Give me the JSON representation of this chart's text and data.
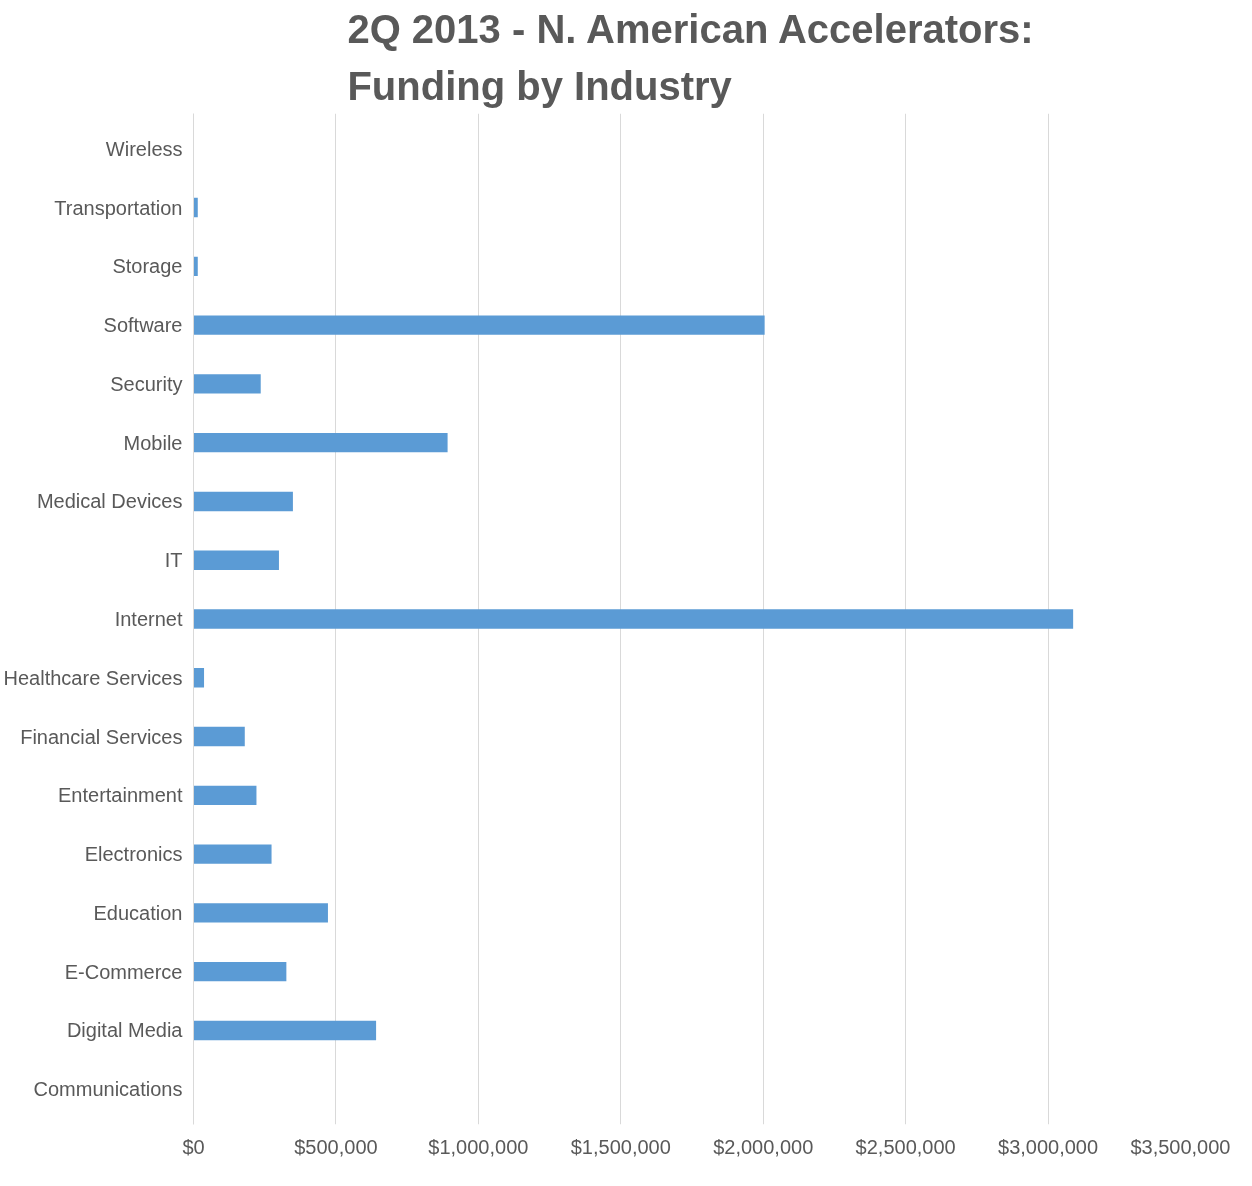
{
  "chart_data": {
    "type": "bar",
    "orientation": "horizontal",
    "title": "2Q 2013 - N. American Accelerators: Funding by Industry",
    "categories": [
      "Wireless",
      "Transportation",
      "Storage",
      "Software",
      "Security",
      "Mobile",
      "Medical Devices",
      "IT",
      "Internet",
      "Healthcare Services",
      "Financial Services",
      "Entertainment",
      "Electronics",
      "Education",
      "E-Commerce",
      "Digital Media",
      "Communications"
    ],
    "values": [
      0,
      15000,
      15000,
      2005000,
      236000,
      892000,
      349000,
      300000,
      3088000,
      37000,
      180000,
      221000,
      274000,
      472000,
      326000,
      641000,
      0
    ],
    "color": "#5b9bd5",
    "xlim": [
      0,
      3500000
    ],
    "xticks": [
      {
        "value": 0,
        "label": "$0"
      },
      {
        "value": 500000,
        "label": "$500,000"
      },
      {
        "value": 1000000,
        "label": "$1,000,000"
      },
      {
        "value": 1500000,
        "label": "$1,500,000"
      },
      {
        "value": 2000000,
        "label": "$2,000,000"
      },
      {
        "value": 2500000,
        "label": "$2,500,000"
      },
      {
        "value": 3000000,
        "label": "$3,000,000"
      },
      {
        "value": 3500000,
        "label": "$3,500,000"
      }
    ],
    "grid": "x"
  }
}
